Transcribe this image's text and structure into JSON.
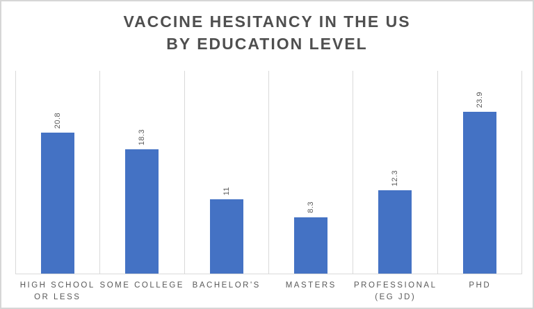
{
  "chart_data": {
    "type": "bar",
    "title": "VACCINE HESITANCY IN THE US BY EDUCATION LEVEL",
    "title_lines": [
      "VACCINE HESITANCY IN THE US",
      "BY EDUCATION LEVEL"
    ],
    "categories": [
      "HIGH SCHOOL OR LESS",
      "SOME COLLEGE",
      "BACHELOR'S",
      "MASTERS",
      "PROFESSIONAL (EG JD)",
      "PHD"
    ],
    "category_display_lines": [
      "HIGH SCHOOL\nOR LESS",
      "SOME COLLEGE",
      "BACHELOR'S",
      "MASTERS",
      "PROFESSIONAL\n(EG JD)",
      "PHD"
    ],
    "values": [
      20.8,
      18.3,
      11,
      8.3,
      12.3,
      23.9
    ],
    "value_labels": [
      "20.8",
      "18.3",
      "11",
      "8.3",
      "12.3",
      "23.9"
    ],
    "value_label_rotation_deg": 90,
    "xlabel": "",
    "ylabel": "",
    "ylim": [
      0,
      30
    ],
    "y_axis_labels_visible": false,
    "grid": "vertical-only",
    "legend_position": "none",
    "colors": {
      "bar": "#4472c4",
      "title": "#4f4f4f",
      "labels": "#595959",
      "gridlines": "#d9d9d9",
      "frame_border": "#d6d6d6",
      "background": "#ffffff"
    }
  }
}
